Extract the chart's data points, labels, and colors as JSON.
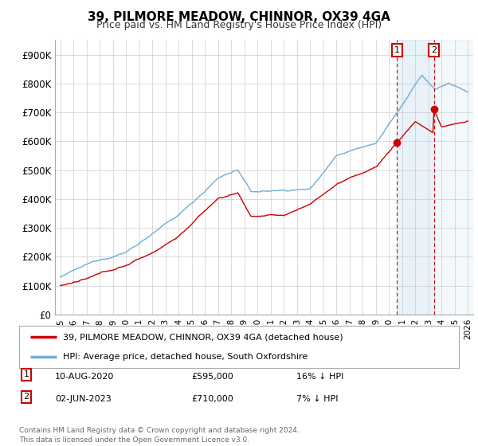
{
  "title": "39, PILMORE MEADOW, CHINNOR, OX39 4GA",
  "subtitle": "Price paid vs. HM Land Registry's House Price Index (HPI)",
  "ylabel_ticks": [
    "£0",
    "£100K",
    "£200K",
    "£300K",
    "£400K",
    "£500K",
    "£600K",
    "£700K",
    "£800K",
    "£900K"
  ],
  "ytick_values": [
    0,
    100000,
    200000,
    300000,
    400000,
    500000,
    600000,
    700000,
    800000,
    900000
  ],
  "ylim": [
    0,
    950000
  ],
  "legend_line1": "39, PILMORE MEADOW, CHINNOR, OX39 4GA (detached house)",
  "legend_line2": "HPI: Average price, detached house, South Oxfordshire",
  "transaction1_date": "10-AUG-2020",
  "transaction1_price": "£595,000",
  "transaction1_note": "16% ↓ HPI",
  "transaction2_date": "02-JUN-2023",
  "transaction2_price": "£710,000",
  "transaction2_note": "7% ↓ HPI",
  "footer": "Contains HM Land Registry data © Crown copyright and database right 2024.\nThis data is licensed under the Open Government Licence v3.0.",
  "hpi_color": "#6baed6",
  "price_color": "#cc0000",
  "transaction_line_color": "#cc0000",
  "shade_color": "#ddeeff",
  "background_color": "#ffffff",
  "grid_color": "#cccccc",
  "t1_year": 2020.614,
  "t2_year": 2023.414
}
